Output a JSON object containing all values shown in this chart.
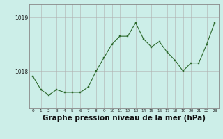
{
  "x": [
    0,
    1,
    2,
    3,
    4,
    5,
    6,
    7,
    8,
    9,
    10,
    11,
    12,
    13,
    14,
    15,
    16,
    17,
    18,
    19,
    20,
    21,
    22,
    23
  ],
  "y": [
    1017.9,
    1017.65,
    1017.55,
    1017.65,
    1017.6,
    1017.6,
    1017.6,
    1017.7,
    1018.0,
    1018.25,
    1018.5,
    1018.65,
    1018.65,
    1018.9,
    1018.6,
    1018.45,
    1018.55,
    1018.35,
    1018.2,
    1018.0,
    1018.15,
    1018.15,
    1018.5,
    1018.9
  ],
  "line_color": "#2d6a2d",
  "marker_color": "#2d6a2d",
  "bg_color": "#cceee8",
  "grid_color": "#b0b0b0",
  "border_color": "#888888",
  "title": "Graphe pression niveau de la mer (hPa)",
  "title_fontsize": 7.5,
  "ylabel_ticks": [
    1018,
    1019
  ],
  "ytick_labels": [
    "1018",
    "1019"
  ],
  "xlim": [
    -0.5,
    23.5
  ],
  "ylim": [
    1017.3,
    1019.25
  ],
  "xtick_labels": [
    "0",
    "1",
    "2",
    "3",
    "4",
    "5",
    "6",
    "7",
    "8",
    "9",
    "10",
    "11",
    "12",
    "13",
    "14",
    "15",
    "16",
    "17",
    "18",
    "19",
    "20",
    "21",
    "22",
    "23"
  ]
}
